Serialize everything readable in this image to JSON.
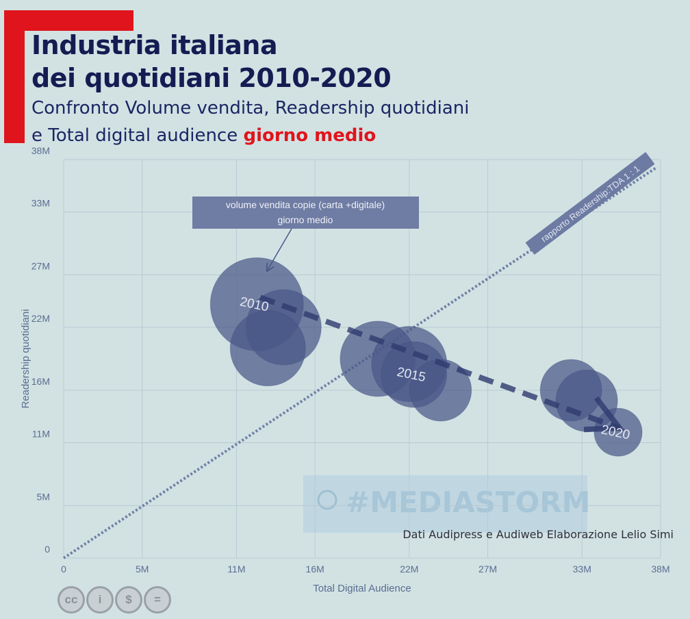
{
  "title_line1": "Industria italiana",
  "title_line2": "dei quotidiani 2010-2020",
  "subtitle_line1": "Confronto Volume vendita, Readership quotidiani",
  "subtitle_line2": "e Total digital audience ",
  "subtitle_highlight": "giorno medio",
  "colors": {
    "accent": "#e0141c",
    "title": "#141c52",
    "bubble": "#4a5788",
    "background": "#d2e2e3"
  },
  "license_icons": [
    "cc-icon",
    "attribution-icon",
    "noncommercial-icon",
    "noderivatives-icon"
  ],
  "chart_data": {
    "type": "scatter",
    "xlabel": "Total Digital Audience",
    "ylabel": "Readership quotidiani",
    "xlim": [
      0,
      38
    ],
    "ylim": [
      0,
      38
    ],
    "x_ticks": [
      "0",
      "5M",
      "11M",
      "16M",
      "22M",
      "27M",
      "33M",
      "38M"
    ],
    "y_ticks": [
      "0",
      "5M",
      "11M",
      "16M",
      "22M",
      "27M",
      "33M",
      "38M"
    ],
    "grid": true,
    "points": [
      {
        "x": 12.3,
        "y": 24.2,
        "size": 68,
        "label": "2010"
      },
      {
        "x": 14.0,
        "y": 22.0,
        "size": 55,
        "label": ""
      },
      {
        "x": 13.0,
        "y": 20.0,
        "size": 55,
        "label": ""
      },
      {
        "x": 20.0,
        "y": 19.0,
        "size": 55,
        "label": ""
      },
      {
        "x": 22.0,
        "y": 18.5,
        "size": 55,
        "label": ""
      },
      {
        "x": 22.3,
        "y": 17.5,
        "size": 48,
        "label": "2015"
      },
      {
        "x": 24.0,
        "y": 16.0,
        "size": 45,
        "label": ""
      },
      {
        "x": 32.3,
        "y": 16.0,
        "size": 45,
        "label": ""
      },
      {
        "x": 33.3,
        "y": 15.0,
        "size": 45,
        "label": ""
      },
      {
        "x": 35.3,
        "y": 12.0,
        "size": 35,
        "label": "2020"
      }
    ],
    "annotations": {
      "bubble_note_line1": "volume vendita copie (carta +digitale)",
      "bubble_note_line2": "giorno medio",
      "diagonal_label": "rapporto Readership:TDA 1 : 1",
      "source": "Dati Audipress e Audiweb  Elaborazione Lelio Simi",
      "watermark": "#MEDIASTORM"
    }
  }
}
